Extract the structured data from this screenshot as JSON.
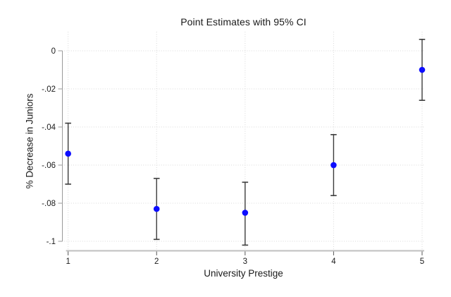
{
  "chart_data": {
    "type": "scatter",
    "title": "Point Estimates with 95% CI",
    "xlabel": "University Prestige",
    "ylabel": "% Decrease in Juniors",
    "x": [
      1,
      2,
      3,
      4,
      5
    ],
    "series": [
      {
        "name": "point-estimate-with-95ci",
        "values": [
          -0.054,
          -0.083,
          -0.085,
          -0.06,
          -0.01
        ],
        "ci_low": [
          -0.07,
          -0.099,
          -0.102,
          -0.076,
          -0.026
        ],
        "ci_high": [
          -0.038,
          -0.067,
          -0.069,
          -0.044,
          0.006
        ]
      }
    ],
    "xticks": {
      "values": [
        1,
        2,
        3,
        4,
        5
      ],
      "labels": [
        "1",
        "2",
        "3",
        "4",
        "5"
      ]
    },
    "yticks": {
      "values": [
        0,
        -0.02,
        -0.04,
        -0.06,
        -0.08,
        -0.1
      ],
      "labels": [
        "0",
        "-.02",
        "-.04",
        "-.06",
        "-.08",
        "-.1"
      ]
    },
    "xlim": [
      0.931,
      5.032
    ],
    "ylim": [
      -0.1048,
      0.01
    ],
    "grid": true,
    "legend": "none",
    "colors": {
      "marker": "#0d0dff",
      "ci_bar": "#3c3c3c",
      "y_axis": "#999999",
      "x_axis": "#bfbfbf",
      "x_tick": "#555555",
      "gridline": "#d9d9d9",
      "text": "#1a1a1a",
      "background": "#ffffff"
    }
  }
}
